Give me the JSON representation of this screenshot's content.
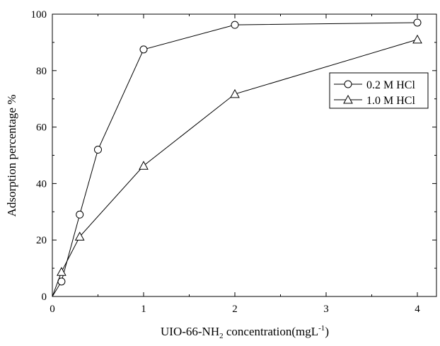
{
  "chart_data": {
    "type": "line",
    "xlabel": {
      "main": "UIO-66-NH",
      "sub": "2",
      "rest": " concentration(mgL",
      "sup": "-1",
      "end": ")"
    },
    "ylabel": "Adsorption percentage %",
    "xlim": [
      0,
      4.2
    ],
    "ylim": [
      0,
      100
    ],
    "xticks": [
      0,
      1,
      2,
      3,
      4
    ],
    "yticks": [
      0,
      20,
      40,
      60,
      80,
      100
    ],
    "grid": false,
    "legend_position": "top-right",
    "series": [
      {
        "name": "0.2 M HCl",
        "marker": "circle",
        "x": [
          0,
          0.1,
          0.3,
          0.5,
          1,
          2,
          4
        ],
        "y": [
          0,
          5.3,
          29,
          52,
          87.5,
          96.2,
          97
        ]
      },
      {
        "name": "1.0 M HCl",
        "marker": "triangle",
        "x": [
          0,
          0.1,
          0.3,
          1,
          2,
          4
        ],
        "y": [
          0,
          8.7,
          21.2,
          46.3,
          71.7,
          91
        ]
      }
    ]
  }
}
